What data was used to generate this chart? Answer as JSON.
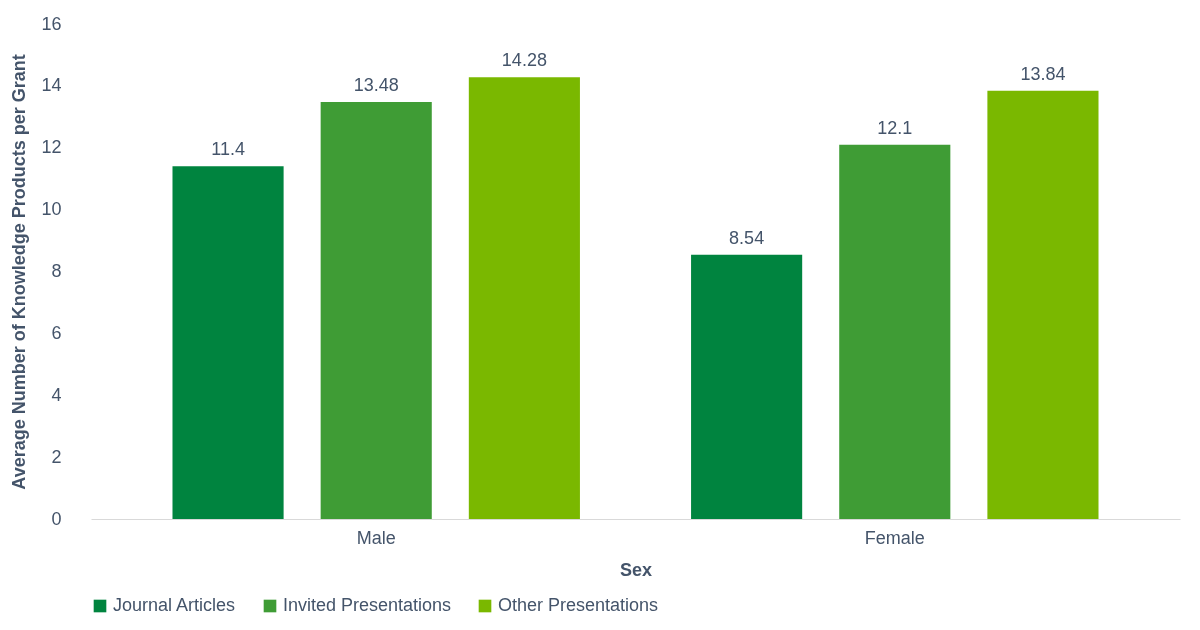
{
  "chart_data": {
    "type": "bar",
    "xlabel": "Sex",
    "ylabel": "Average Number of Knowledge Products per Grant",
    "categories": [
      "Male",
      "Female"
    ],
    "series": [
      {
        "name": "Journal Articles",
        "color": "#00843f",
        "values": [
          11.4,
          8.54
        ]
      },
      {
        "name": "Invited Presentations",
        "color": "#3f9c35",
        "values": [
          13.48,
          12.1
        ]
      },
      {
        "name": "Other Presentations",
        "color": "#7ab800",
        "values": [
          14.28,
          13.84
        ]
      }
    ],
    "ylim": [
      0,
      16
    ],
    "yticks": [
      0,
      2,
      4,
      6,
      8,
      10,
      12,
      14,
      16
    ],
    "grid": false,
    "legend": "bottom",
    "data_labels": true
  }
}
